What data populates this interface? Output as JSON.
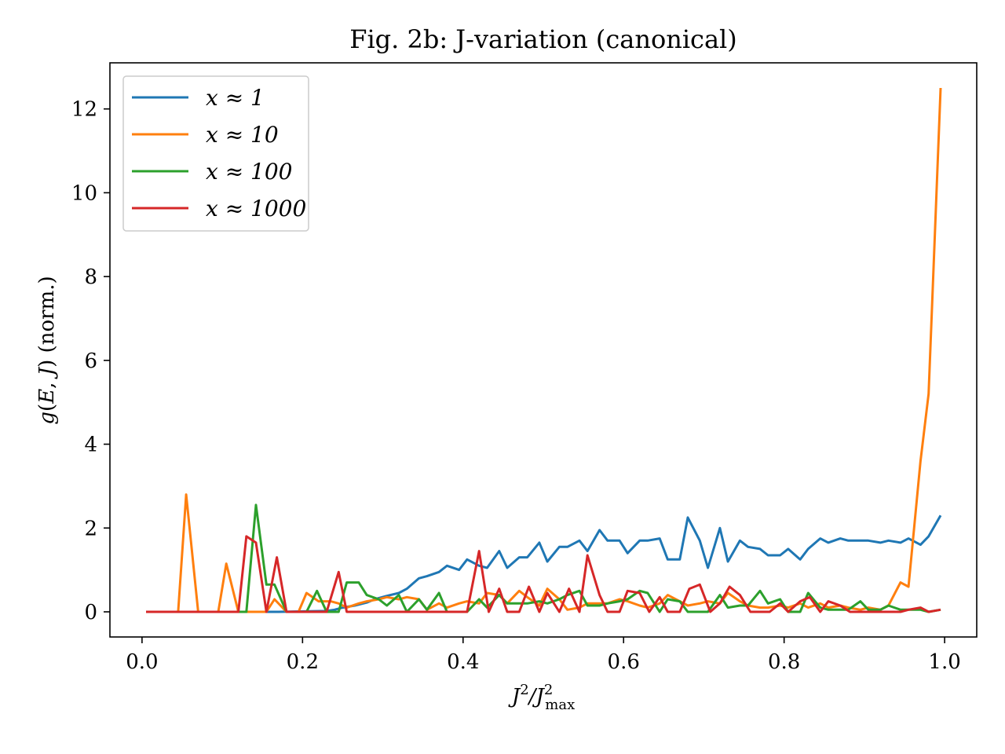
{
  "chart_data": {
    "type": "line",
    "title": "Fig. 2b: J-variation (canonical)",
    "xlabel": "J²/J²max",
    "ylabel": "g(E, J) (norm.)",
    "xlim": [
      -0.04,
      1.04
    ],
    "ylim": [
      -0.6,
      13.1
    ],
    "xticks": [
      0.0,
      0.2,
      0.4,
      0.6,
      0.8,
      1.0
    ],
    "xtick_labels": [
      "0.0",
      "0.2",
      "0.4",
      "0.6",
      "0.8",
      "1.0"
    ],
    "yticks": [
      0,
      2,
      4,
      6,
      8,
      10,
      12
    ],
    "ytick_labels": [
      "0",
      "2",
      "4",
      "6",
      "8",
      "10",
      "12"
    ],
    "grid": false,
    "legend_position": "top-left",
    "series": [
      {
        "name": "x ≈ 1",
        "color": "#1f77b4",
        "x": [
          0.005,
          0.17,
          0.23,
          0.24,
          0.25,
          0.265,
          0.28,
          0.29,
          0.305,
          0.32,
          0.33,
          0.345,
          0.355,
          0.37,
          0.38,
          0.395,
          0.405,
          0.42,
          0.43,
          0.445,
          0.455,
          0.47,
          0.48,
          0.495,
          0.505,
          0.52,
          0.53,
          0.545,
          0.555,
          0.57,
          0.58,
          0.595,
          0.605,
          0.62,
          0.63,
          0.645,
          0.655,
          0.67,
          0.68,
          0.695,
          0.705,
          0.72,
          0.73,
          0.745,
          0.755,
          0.77,
          0.78,
          0.795,
          0.805,
          0.82,
          0.83,
          0.845,
          0.855,
          0.87,
          0.88,
          0.895,
          0.905,
          0.92,
          0.93,
          0.945,
          0.955,
          0.97,
          0.98,
          0.995
        ],
        "y": [
          0,
          0,
          0.02,
          0.05,
          0.1,
          0.15,
          0.22,
          0.3,
          0.38,
          0.45,
          0.55,
          0.8,
          0.85,
          0.95,
          1.1,
          1.0,
          1.25,
          1.1,
          1.05,
          1.45,
          1.05,
          1.3,
          1.3,
          1.65,
          1.2,
          1.55,
          1.55,
          1.7,
          1.45,
          1.95,
          1.7,
          1.7,
          1.4,
          1.7,
          1.7,
          1.75,
          1.25,
          1.25,
          2.25,
          1.7,
          1.05,
          2.0,
          1.2,
          1.7,
          1.55,
          1.5,
          1.35,
          1.35,
          1.5,
          1.25,
          1.5,
          1.75,
          1.65,
          1.75,
          1.7,
          1.7,
          1.7,
          1.65,
          1.7,
          1.65,
          1.75,
          1.6,
          1.8,
          2.3
        ]
      },
      {
        "name": "x ≈ 10",
        "color": "#ff7f0e",
        "x": [
          0.005,
          0.045,
          0.055,
          0.07,
          0.095,
          0.105,
          0.12,
          0.155,
          0.165,
          0.18,
          0.195,
          0.205,
          0.22,
          0.235,
          0.245,
          0.255,
          0.27,
          0.28,
          0.295,
          0.305,
          0.32,
          0.33,
          0.345,
          0.355,
          0.37,
          0.38,
          0.395,
          0.405,
          0.42,
          0.43,
          0.445,
          0.455,
          0.47,
          0.48,
          0.495,
          0.505,
          0.52,
          0.53,
          0.545,
          0.555,
          0.57,
          0.58,
          0.595,
          0.605,
          0.62,
          0.63,
          0.645,
          0.655,
          0.67,
          0.68,
          0.695,
          0.705,
          0.72,
          0.73,
          0.745,
          0.755,
          0.77,
          0.78,
          0.795,
          0.805,
          0.82,
          0.83,
          0.845,
          0.855,
          0.87,
          0.88,
          0.895,
          0.905,
          0.92,
          0.93,
          0.945,
          0.955,
          0.97,
          0.98,
          0.995
        ],
        "y": [
          0,
          0,
          2.8,
          0,
          0,
          1.15,
          0,
          0,
          0.3,
          0,
          0,
          0.45,
          0.25,
          0.25,
          0.2,
          0.1,
          0.2,
          0.25,
          0.3,
          0.35,
          0.3,
          0.35,
          0.3,
          0.05,
          0.2,
          0.1,
          0.2,
          0.25,
          0.2,
          0.45,
          0.4,
          0.2,
          0.5,
          0.35,
          0.15,
          0.55,
          0.3,
          0.05,
          0.1,
          0.2,
          0.2,
          0.2,
          0.3,
          0.25,
          0.15,
          0.1,
          0.2,
          0.4,
          0.25,
          0.15,
          0.2,
          0.25,
          0.2,
          0.45,
          0.25,
          0.15,
          0.1,
          0.1,
          0.15,
          0.1,
          0.2,
          0.1,
          0.2,
          0.1,
          0.15,
          0.1,
          0.05,
          0.1,
          0.05,
          0.15,
          0.7,
          0.6,
          3.6,
          5.2,
          12.5
        ]
      },
      {
        "name": "x ≈ 100",
        "color": "#2ca02c",
        "x": [
          0.005,
          0.13,
          0.142,
          0.155,
          0.165,
          0.18,
          0.195,
          0.205,
          0.218,
          0.23,
          0.245,
          0.255,
          0.27,
          0.28,
          0.295,
          0.305,
          0.32,
          0.33,
          0.345,
          0.355,
          0.37,
          0.38,
          0.395,
          0.405,
          0.42,
          0.43,
          0.445,
          0.455,
          0.47,
          0.48,
          0.495,
          0.505,
          0.52,
          0.53,
          0.545,
          0.555,
          0.57,
          0.58,
          0.595,
          0.605,
          0.62,
          0.63,
          0.645,
          0.655,
          0.67,
          0.68,
          0.695,
          0.705,
          0.72,
          0.73,
          0.745,
          0.755,
          0.77,
          0.78,
          0.795,
          0.805,
          0.82,
          0.83,
          0.845,
          0.855,
          0.87,
          0.88,
          0.895,
          0.905,
          0.92,
          0.93,
          0.945,
          0.955,
          0.97,
          0.98,
          0.995
        ],
        "y": [
          0,
          0,
          2.55,
          0.65,
          0.65,
          0,
          0,
          0,
          0.5,
          0,
          0,
          0.7,
          0.7,
          0.4,
          0.3,
          0.15,
          0.4,
          0,
          0.3,
          0.05,
          0.45,
          0,
          0,
          0,
          0.3,
          0.1,
          0.4,
          0.2,
          0.2,
          0.2,
          0.25,
          0.2,
          0.3,
          0.4,
          0.5,
          0.15,
          0.15,
          0.2,
          0.25,
          0.3,
          0.5,
          0.45,
          0,
          0.3,
          0.25,
          0,
          0,
          0,
          0.4,
          0.1,
          0.15,
          0.15,
          0.5,
          0.2,
          0.3,
          0,
          0,
          0.45,
          0.1,
          0.05,
          0.05,
          0.05,
          0.25,
          0.05,
          0.05,
          0.15,
          0.05,
          0.05,
          0.05,
          0,
          0.05
        ]
      },
      {
        "name": "x ≈ 1000",
        "color": "#d62728",
        "x": [
          0.005,
          0.12,
          0.13,
          0.142,
          0.155,
          0.168,
          0.18,
          0.23,
          0.245,
          0.255,
          0.38,
          0.405,
          0.42,
          0.432,
          0.445,
          0.455,
          0.47,
          0.482,
          0.495,
          0.505,
          0.52,
          0.532,
          0.545,
          0.555,
          0.57,
          0.58,
          0.595,
          0.605,
          0.62,
          0.632,
          0.645,
          0.655,
          0.67,
          0.682,
          0.695,
          0.708,
          0.72,
          0.732,
          0.745,
          0.758,
          0.77,
          0.782,
          0.795,
          0.805,
          0.82,
          0.832,
          0.845,
          0.855,
          0.87,
          0.882,
          0.895,
          0.905,
          0.92,
          0.932,
          0.945,
          0.955,
          0.97,
          0.98,
          0.995
        ],
        "y": [
          0,
          0,
          1.8,
          1.65,
          0,
          1.3,
          0,
          0,
          0.95,
          0,
          0,
          0,
          1.45,
          0,
          0.55,
          0,
          0,
          0.6,
          0,
          0.45,
          0,
          0.55,
          0,
          1.35,
          0.4,
          0,
          0,
          0.5,
          0.45,
          0,
          0.35,
          0,
          0,
          0.55,
          0.65,
          0,
          0.2,
          0.6,
          0.4,
          0,
          0,
          0,
          0.2,
          0,
          0.25,
          0.35,
          0,
          0.25,
          0.15,
          0,
          0,
          0,
          0,
          0,
          0,
          0.05,
          0.1,
          0,
          0.05
        ]
      }
    ]
  }
}
